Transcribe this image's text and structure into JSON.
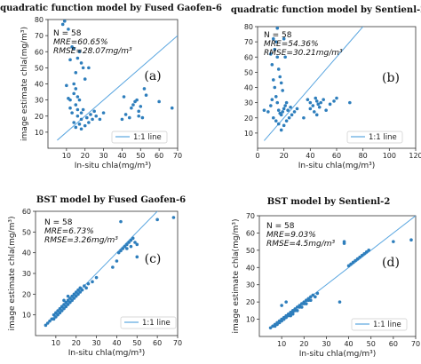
{
  "chart_data": [
    {
      "type": "scatter",
      "title": "quadratic function model by Fused Gaofen-6",
      "panel_label": "(a)",
      "xlabel": "In-situ chla(mg/m³)",
      "ylabel": "image estimate chla(mg/m³)",
      "xlim": [
        0,
        70
      ],
      "ylim": [
        0,
        80
      ],
      "xticks": [
        10,
        20,
        30,
        40,
        50,
        60,
        70
      ],
      "yticks": [
        10,
        20,
        30,
        40,
        50,
        60,
        70,
        80
      ],
      "stats": [
        "N = 58",
        "MRE=60.65%",
        "RMSE=28.07mg/m³"
      ],
      "legend": "1:1 line",
      "one_to_one": [
        [
          5,
          5
        ],
        [
          70,
          70
        ]
      ],
      "points": [
        [
          8,
          77
        ],
        [
          9,
          79
        ],
        [
          11,
          74
        ],
        [
          12,
          55
        ],
        [
          13,
          63
        ],
        [
          14,
          62
        ],
        [
          15,
          47
        ],
        [
          16,
          56
        ],
        [
          17,
          60
        ],
        [
          18,
          53
        ],
        [
          19,
          50
        ],
        [
          20,
          43
        ],
        [
          14,
          40
        ],
        [
          15,
          37
        ],
        [
          16,
          32
        ],
        [
          14,
          34
        ],
        [
          17,
          30
        ],
        [
          15,
          27
        ],
        [
          13,
          22
        ],
        [
          16,
          24
        ],
        [
          18,
          22
        ],
        [
          19,
          24
        ],
        [
          16,
          20
        ],
        [
          18,
          18
        ],
        [
          14,
          16
        ],
        [
          15,
          13
        ],
        [
          17,
          15
        ],
        [
          18,
          12
        ],
        [
          10,
          39
        ],
        [
          11,
          31
        ],
        [
          12,
          30
        ],
        [
          21,
          19
        ],
        [
          23,
          21
        ],
        [
          25,
          23
        ],
        [
          41,
          32
        ],
        [
          42,
          21
        ],
        [
          44,
          19
        ],
        [
          45,
          25
        ],
        [
          46,
          27
        ],
        [
          47,
          29
        ],
        [
          48,
          30
        ],
        [
          49,
          23
        ],
        [
          50,
          26
        ],
        [
          51,
          19
        ],
        [
          52,
          37
        ],
        [
          53,
          33
        ],
        [
          49,
          20
        ],
        [
          60,
          29
        ],
        [
          67,
          25
        ],
        [
          40,
          18
        ],
        [
          20,
          14
        ],
        [
          22,
          16
        ],
        [
          24,
          18
        ],
        [
          26,
          20
        ],
        [
          28,
          18
        ],
        [
          30,
          22
        ],
        [
          12,
          25
        ],
        [
          22,
          50
        ]
      ]
    },
    {
      "type": "scatter",
      "title": "quadratic function model by Sentienl-2",
      "panel_label": "(b)",
      "xlabel": "In-situ chla(mg/m³)",
      "ylabel": "",
      "xlim": [
        0,
        120
      ],
      "ylim": [
        0,
        80
      ],
      "xticks": [
        0,
        20,
        40,
        60,
        80,
        100,
        120
      ],
      "yticks": [
        10,
        20,
        30,
        40,
        50,
        60,
        70,
        80
      ],
      "stats": [
        "N = 58",
        "MRE=54.36%",
        "RMSE=30.21mg/m³"
      ],
      "legend": "1:1 line",
      "one_to_one": [
        [
          5,
          5
        ],
        [
          120,
          120
        ]
      ],
      "points": [
        [
          5,
          25
        ],
        [
          8,
          24
        ],
        [
          10,
          62
        ],
        [
          11,
          55
        ],
        [
          12,
          72
        ],
        [
          13,
          65
        ],
        [
          14,
          70
        ],
        [
          15,
          60
        ],
        [
          16,
          52
        ],
        [
          17,
          47
        ],
        [
          18,
          43
        ],
        [
          19,
          38
        ],
        [
          20,
          72
        ],
        [
          21,
          60
        ],
        [
          12,
          45
        ],
        [
          13,
          40
        ],
        [
          14,
          34
        ],
        [
          15,
          30
        ],
        [
          16,
          25
        ],
        [
          17,
          23
        ],
        [
          18,
          22
        ],
        [
          19,
          24
        ],
        [
          20,
          26
        ],
        [
          21,
          28
        ],
        [
          22,
          30
        ],
        [
          23,
          25
        ],
        [
          25,
          27
        ],
        [
          12,
          20
        ],
        [
          14,
          18
        ],
        [
          16,
          16
        ],
        [
          18,
          12
        ],
        [
          20,
          15
        ],
        [
          22,
          18
        ],
        [
          24,
          20
        ],
        [
          10,
          28
        ],
        [
          11,
          32
        ],
        [
          38,
          32
        ],
        [
          40,
          30
        ],
        [
          42,
          28
        ],
        [
          44,
          33
        ],
        [
          45,
          31
        ],
        [
          46,
          29
        ],
        [
          47,
          27
        ],
        [
          48,
          30
        ],
        [
          50,
          32
        ],
        [
          52,
          25
        ],
        [
          55,
          29
        ],
        [
          58,
          31
        ],
        [
          60,
          33
        ],
        [
          70,
          30
        ],
        [
          40,
          26
        ],
        [
          43,
          24
        ],
        [
          45,
          22
        ],
        [
          26,
          22
        ],
        [
          28,
          24
        ],
        [
          30,
          26
        ],
        [
          35,
          20
        ],
        [
          15,
          79
        ]
      ]
    },
    {
      "type": "scatter",
      "title": "BST model by Fused Gaofen-6",
      "panel_label": "(c)",
      "xlabel": "In-situ chla(mg/m³)",
      "ylabel": "image estimate chla(mg/m³)",
      "xlim": [
        0,
        70
      ],
      "ylim": [
        0,
        60
      ],
      "xticks": [
        10,
        20,
        30,
        40,
        50,
        60,
        70
      ],
      "yticks": [
        10,
        20,
        30,
        40,
        50,
        60
      ],
      "stats": [
        "N = 58",
        "MRE=6.73%",
        "RMSE=3.26mg/m³"
      ],
      "legend": "1:1 line",
      "one_to_one": [
        [
          5,
          5
        ],
        [
          70,
          70
        ]
      ],
      "points": [
        [
          5,
          5
        ],
        [
          6,
          6
        ],
        [
          7,
          7
        ],
        [
          8,
          8
        ],
        [
          9,
          8
        ],
        [
          9,
          10
        ],
        [
          10,
          9
        ],
        [
          10,
          11
        ],
        [
          11,
          10
        ],
        [
          11,
          12
        ],
        [
          12,
          11
        ],
        [
          12,
          13
        ],
        [
          13,
          12
        ],
        [
          13,
          14
        ],
        [
          14,
          13
        ],
        [
          14,
          15
        ],
        [
          15,
          14
        ],
        [
          15,
          16
        ],
        [
          16,
          15
        ],
        [
          16,
          17
        ],
        [
          17,
          16
        ],
        [
          17,
          18
        ],
        [
          18,
          17
        ],
        [
          18,
          19
        ],
        [
          19,
          18
        ],
        [
          19,
          20
        ],
        [
          20,
          19
        ],
        [
          20,
          21
        ],
        [
          21,
          20
        ],
        [
          21,
          22
        ],
        [
          22,
          21
        ],
        [
          22,
          23
        ],
        [
          23,
          22
        ],
        [
          24,
          24
        ],
        [
          25,
          23
        ],
        [
          26,
          25
        ],
        [
          14,
          17
        ],
        [
          16,
          19
        ],
        [
          38,
          33
        ],
        [
          40,
          36
        ],
        [
          41,
          40
        ],
        [
          42,
          41
        ],
        [
          43,
          42
        ],
        [
          44,
          43
        ],
        [
          45,
          44
        ],
        [
          46,
          45
        ],
        [
          47,
          46
        ],
        [
          48,
          47
        ],
        [
          49,
          45
        ],
        [
          50,
          38
        ],
        [
          50,
          44
        ],
        [
          42,
          55
        ],
        [
          60,
          56
        ],
        [
          68,
          57
        ],
        [
          45,
          42
        ],
        [
          47,
          43
        ],
        [
          30,
          28
        ],
        [
          28,
          26
        ]
      ]
    },
    {
      "type": "scatter",
      "title": "BST model by  Sentienl-2",
      "panel_label": "(d)",
      "xlabel": "In-situ chla(mg/m³)",
      "ylabel": "image estimate chla(mg/m³)",
      "xlim": [
        0,
        70
      ],
      "ylim": [
        0,
        70
      ],
      "xticks": [
        10,
        20,
        30,
        40,
        50,
        60,
        70
      ],
      "yticks": [
        10,
        20,
        30,
        40,
        50,
        60,
        70
      ],
      "stats": [
        "N = 58",
        "MRE=9.03%",
        "RMSE=4.5mg/m³"
      ],
      "legend": "1:1 line",
      "one_to_one": [
        [
          5,
          5
        ],
        [
          70,
          70
        ]
      ],
      "points": [
        [
          5,
          5
        ],
        [
          6,
          6
        ],
        [
          7,
          7
        ],
        [
          8,
          7
        ],
        [
          8,
          8
        ],
        [
          9,
          9
        ],
        [
          10,
          9
        ],
        [
          10,
          10
        ],
        [
          11,
          11
        ],
        [
          12,
          11
        ],
        [
          12,
          12
        ],
        [
          13,
          13
        ],
        [
          14,
          13
        ],
        [
          14,
          14
        ],
        [
          15,
          15
        ],
        [
          16,
          15
        ],
        [
          16,
          16
        ],
        [
          17,
          17
        ],
        [
          18,
          17
        ],
        [
          18,
          18
        ],
        [
          19,
          19
        ],
        [
          20,
          19
        ],
        [
          20,
          20
        ],
        [
          21,
          21
        ],
        [
          22,
          21
        ],
        [
          22,
          22
        ],
        [
          23,
          23
        ],
        [
          24,
          24
        ],
        [
          10,
          18
        ],
        [
          12,
          20
        ],
        [
          15,
          13
        ],
        [
          17,
          15
        ],
        [
          19,
          17
        ],
        [
          21,
          19
        ],
        [
          23,
          21
        ],
        [
          36,
          20
        ],
        [
          38,
          55
        ],
        [
          38,
          54
        ],
        [
          40,
          41
        ],
        [
          41,
          42
        ],
        [
          42,
          43
        ],
        [
          43,
          44
        ],
        [
          44,
          45
        ],
        [
          45,
          46
        ],
        [
          46,
          47
        ],
        [
          47,
          48
        ],
        [
          48,
          49
        ],
        [
          49,
          50
        ],
        [
          60,
          55
        ],
        [
          68,
          56
        ],
        [
          13,
          12
        ],
        [
          14,
          12
        ],
        [
          15,
          14
        ],
        [
          25,
          23
        ],
        [
          26,
          25
        ],
        [
          11,
          10
        ],
        [
          9,
          8
        ],
        [
          7,
          6
        ]
      ]
    }
  ],
  "colors": {
    "series": "#2e7ebc",
    "line": "#5aa6e0",
    "axis": "#333333",
    "grid_text": "#222222"
  }
}
